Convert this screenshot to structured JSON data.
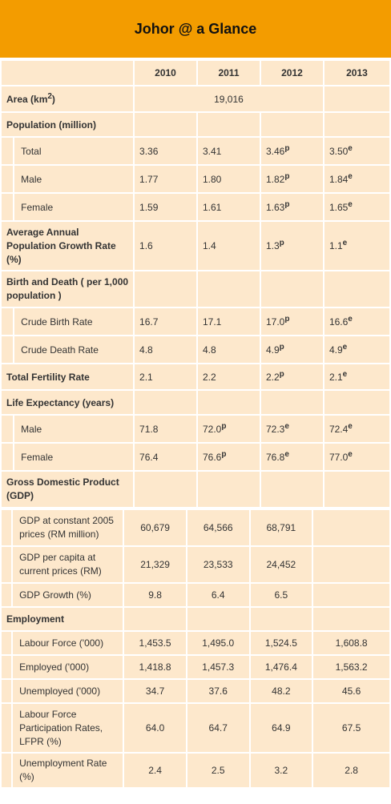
{
  "title": "Johor @ a Glance",
  "years": [
    "2010",
    "2011",
    "2012",
    "2013"
  ],
  "area": {
    "label": "Area (km",
    "sup": "2",
    "suffix": ")",
    "value": "19,016"
  },
  "population": {
    "label": "Population (million)",
    "rows": [
      {
        "label": "Total",
        "v2010": "3.36",
        "v2011": "3.41",
        "v2012": "3.46",
        "s2012": "p",
        "v2013": "3.50",
        "s2013": "e"
      },
      {
        "label": "Male",
        "v2010": "1.77",
        "v2011": "1.80",
        "v2012": "1.82",
        "s2012": "p",
        "v2013": "1.84",
        "s2013": "e"
      },
      {
        "label": "Female",
        "v2010": "1.59",
        "v2011": "1.61",
        "v2012": "1.63",
        "s2012": "p",
        "v2013": "1.65",
        "s2013": "e"
      }
    ]
  },
  "growth": {
    "label": "Average Annual Population Growth Rate (%)",
    "v2010": "1.6",
    "v2011": "1.4",
    "v2012": "1.3",
    "s2012": "p",
    "v2013": "1.1",
    "s2013": "e"
  },
  "birth_death": {
    "label": "Birth and Death ( per 1,000 population )",
    "rows": [
      {
        "label": "Crude Birth Rate",
        "v2010": "16.7",
        "v2011": "17.1",
        "v2012": "17.0",
        "s2012": "p",
        "v2013": "16.6",
        "s2013": "e"
      },
      {
        "label": "Crude Death Rate",
        "v2010": "4.8",
        "v2011": "4.8",
        "v2012": "4.9",
        "s2012": "p",
        "v2013": "4.9",
        "s2013": "e"
      }
    ]
  },
  "fertility": {
    "label": "Total Fertility Rate",
    "v2010": "2.1",
    "v2011": "2.2",
    "v2012": "2.2",
    "s2012": "p",
    "v2013": "2.1",
    "s2013": "e"
  },
  "life": {
    "label": "Life Expectancy (years)",
    "rows": [
      {
        "label": "Male",
        "v2010": "71.8",
        "v2011": "72.0",
        "s2011": "p",
        "v2012": "72.3",
        "s2012": "e",
        "v2013": "72.4",
        "s2013": "e"
      },
      {
        "label": "Female",
        "v2010": "76.4",
        "v2011": "76.6",
        "s2011": "p",
        "v2012": "76.8",
        "s2012": "e",
        "v2013": "77.0",
        "s2013": "e"
      }
    ]
  },
  "gdp": {
    "label": "Gross Domestic Product (GDP)",
    "rows": [
      {
        "label": "GDP at constant 2005 prices (RM million)",
        "v2010": "60,679",
        "v2011": "64,566",
        "v2012": "68,791",
        "v2013": ""
      },
      {
        "label": "GDP per capita at current prices (RM)",
        "v2010": "21,329",
        "v2011": "23,533",
        "v2012": "24,452",
        "v2013": ""
      },
      {
        "label": "GDP Growth (%)",
        "v2010": "9.8",
        "v2011": "6.4",
        "v2012": "6.5",
        "v2013": ""
      }
    ]
  },
  "employment": {
    "label": "Employment",
    "rows": [
      {
        "label": "Labour Force ('000)",
        "v2010": "1,453.5",
        "v2011": "1,495.0",
        "v2012": "1,524.5",
        "v2013": "1,608.8"
      },
      {
        "label": "Employed ('000)",
        "v2010": "1,418.8",
        "v2011": "1,457.3",
        "v2012": "1,476.4",
        "v2013": "1,563.2"
      },
      {
        "label": "Unemployed ('000)",
        "v2010": "34.7",
        "v2011": "37.6",
        "v2012": "48.2",
        "v2013": "45.6"
      },
      {
        "label": "Labour Force Participation Rates, LFPR (%)",
        "v2010": "64.0",
        "v2011": "64.7",
        "v2012": "64.9",
        "v2013": "67.5"
      },
      {
        "label": "Unemployment Rate (%)",
        "v2010": "2.4",
        "v2011": "2.5",
        "v2012": "3.2",
        "v2013": "2.8"
      }
    ]
  }
}
